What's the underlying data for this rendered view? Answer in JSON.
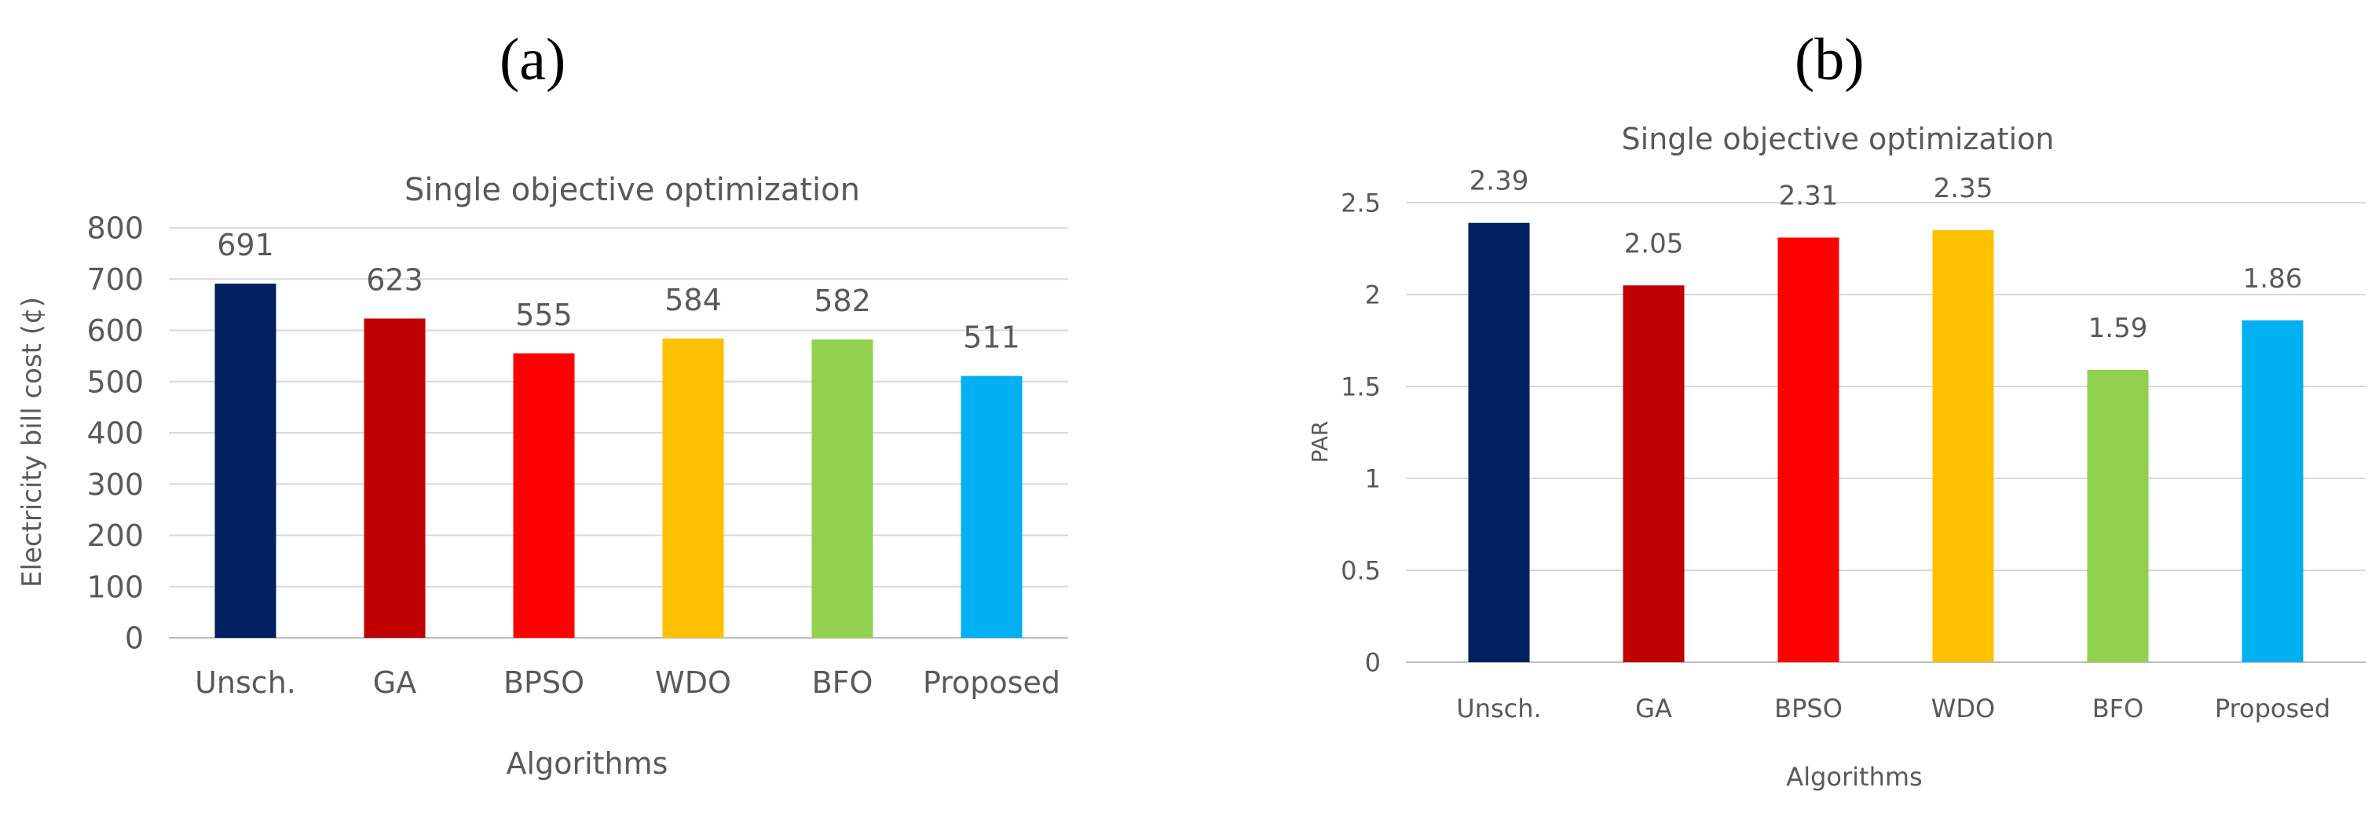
{
  "panels": {
    "a_label": "(a)",
    "b_label": "(b)"
  },
  "chart_data": [
    {
      "id": "a",
      "type": "bar",
      "title": "Single objective optimization",
      "xlabel": "Algorithms",
      "ylabel": "Electricity bill cost (¢)",
      "categories": [
        "Unsch.",
        "GA",
        "BPSO",
        "WDO",
        "BFO",
        "Proposed"
      ],
      "values": [
        691,
        623,
        555,
        584,
        582,
        511
      ],
      "data_labels": [
        "691",
        "623",
        "555",
        "584",
        "582",
        "511"
      ],
      "colors": [
        "#002060",
        "#C00000",
        "#FF0000",
        "#FFC000",
        "#92D050",
        "#00B0F0"
      ],
      "ylim": [
        0,
        800
      ],
      "yticks": [
        0,
        100,
        200,
        300,
        400,
        500,
        600,
        700,
        800
      ],
      "ytick_labels": [
        "0",
        "100",
        "200",
        "300",
        "400",
        "500",
        "600",
        "700",
        "800"
      ],
      "grid": true
    },
    {
      "id": "b",
      "type": "bar",
      "title": "Single objective optimization",
      "xlabel": "Algorithms",
      "ylabel": "PAR",
      "categories": [
        "Unsch.",
        "GA",
        "BPSO",
        "WDO",
        "BFO",
        "Proposed"
      ],
      "values": [
        2.39,
        2.05,
        2.31,
        2.35,
        1.59,
        1.86
      ],
      "data_labels": [
        "2.39",
        "2.05",
        "2.31",
        "2.35",
        "1.59",
        "1.86"
      ],
      "colors": [
        "#002060",
        "#C00000",
        "#FF0000",
        "#FFC000",
        "#92D050",
        "#00B0F0"
      ],
      "ylim": [
        0,
        2.5
      ],
      "yticks": [
        0,
        0.5,
        1,
        1.5,
        2,
        2.5
      ],
      "ytick_labels": [
        "0",
        "0.5",
        "1",
        "1.5",
        "2",
        "2.5"
      ],
      "grid": true
    }
  ]
}
